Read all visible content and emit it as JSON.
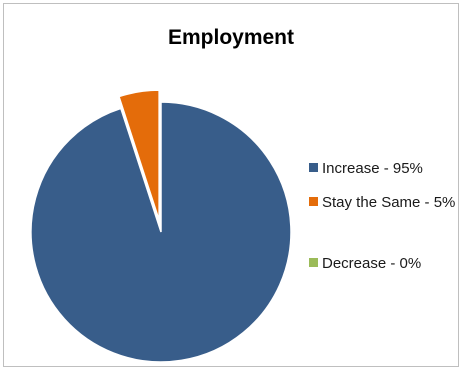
{
  "chart_data": {
    "type": "pie",
    "title": "Employment",
    "slices": [
      {
        "label": "Increase - 95%",
        "value": 95,
        "color": "#385d8a"
      },
      {
        "label": "Stay the Same - 5%",
        "value": 5,
        "color": "#e46c0a",
        "exploded": true
      },
      {
        "label": "Decrease - 0%",
        "value": 0,
        "color": "#9bbb59"
      }
    ],
    "legend_position": "right"
  }
}
